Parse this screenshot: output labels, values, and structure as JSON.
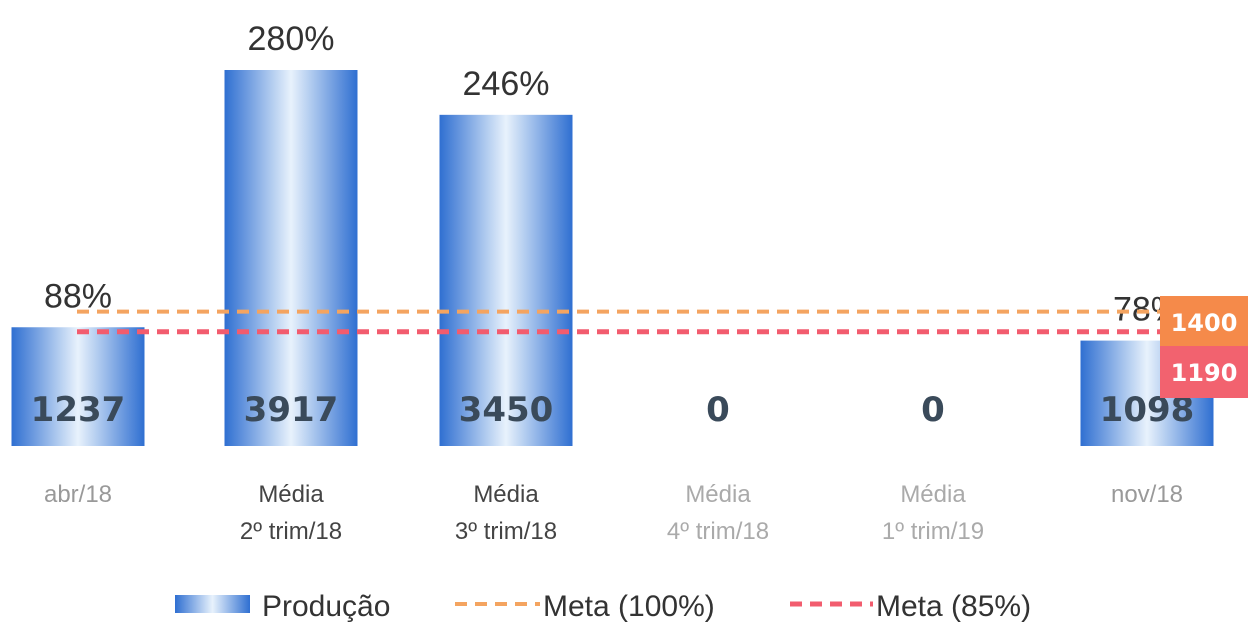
{
  "chart_data": {
    "type": "bar",
    "categories": [
      [
        "abr/18"
      ],
      [
        "Média",
        "2º trim/18"
      ],
      [
        "Média",
        "3º trim/18"
      ],
      [
        "Média",
        "4º trim/18"
      ],
      [
        "Média",
        "1º trim/19"
      ],
      [
        "nov/18"
      ]
    ],
    "category_colors": [
      "#999999",
      "#444444",
      "#444444",
      "#aaaaaa",
      "#aaaaaa",
      "#999999"
    ],
    "series": [
      {
        "name": "Produção",
        "values": [
          1237,
          3917,
          3450,
          0,
          0,
          1098
        ]
      }
    ],
    "percent_labels": [
      "88%",
      "280%",
      "246%",
      "",
      "",
      "78%"
    ],
    "lines": [
      {
        "name": "Meta (100%)",
        "value": 1400,
        "color": "#f4a460",
        "label": "1400"
      },
      {
        "name": "Meta (85%)",
        "value": 1190,
        "color": "#f25c6e",
        "label": "1190"
      }
    ],
    "ylim": [
      0,
      3917
    ],
    "bar_colors": {
      "edge": "#2f6fd1",
      "center": "#e8f2fc"
    },
    "legend_position": "bottom"
  }
}
